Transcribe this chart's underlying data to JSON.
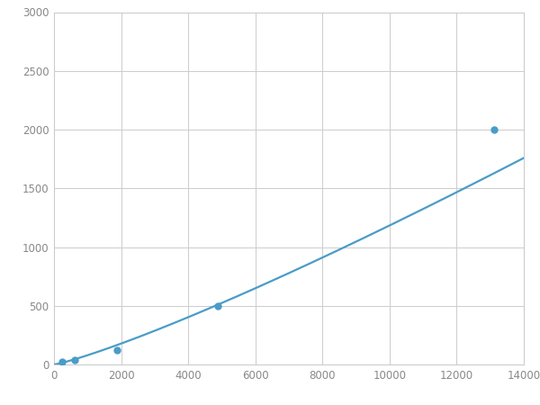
{
  "x": [
    250,
    625,
    1875,
    4875,
    13125
  ],
  "y": [
    20,
    40,
    120,
    500,
    2000
  ],
  "line_color": "#4a9cc7",
  "marker_color": "#4a9cc7",
  "marker_size": 5,
  "line_width": 1.6,
  "xlim": [
    0,
    14000
  ],
  "ylim": [
    0,
    3000
  ],
  "xticks": [
    0,
    2000,
    4000,
    6000,
    8000,
    10000,
    12000,
    14000
  ],
  "yticks": [
    0,
    500,
    1000,
    1500,
    2000,
    2500,
    3000
  ],
  "xtick_labels": [
    "0",
    "2000",
    "4000",
    "6000",
    "8000",
    "10000",
    "12000",
    "14000"
  ],
  "ytick_labels": [
    "0",
    "500",
    "1000",
    "1500",
    "2000",
    "2500",
    "3000"
  ],
  "grid_color": "#cccccc",
  "background_color": "#ffffff",
  "spine_color": "#cccccc",
  "tick_color": "#888888",
  "tick_fontsize": 8.5
}
